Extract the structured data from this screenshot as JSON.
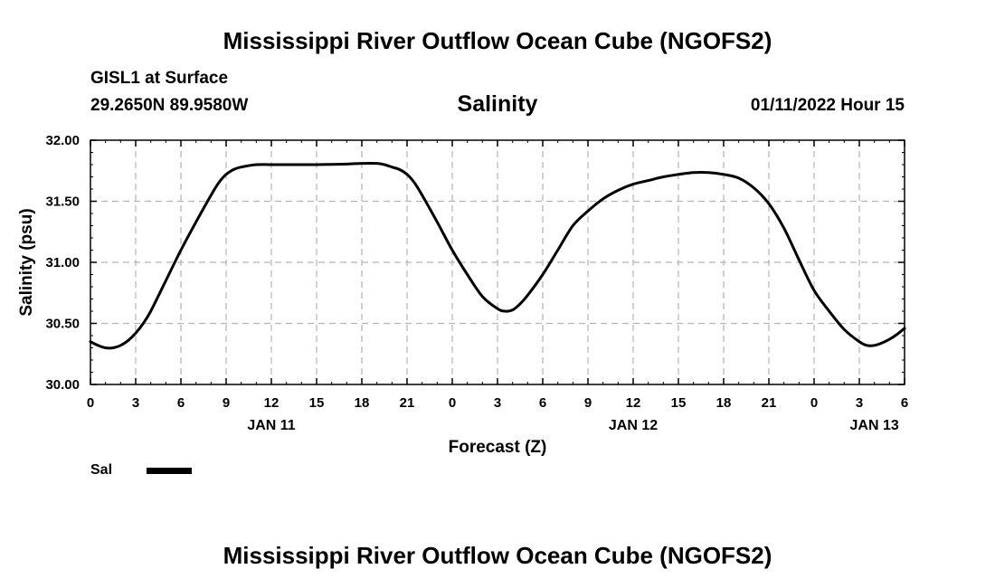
{
  "header": {
    "title": "Mississippi River Outflow Ocean Cube (NGOFS2)",
    "station": "GISL1 at Surface",
    "coordinates": "29.2650N  89.9580W",
    "variable": "Salinity",
    "datetime": "01/11/2022 Hour 15"
  },
  "footer": {
    "title": "Mississippi River Outflow Ocean Cube (NGOFS2)"
  },
  "legend": {
    "label": "Sal",
    "color": "#000000"
  },
  "chart_data": {
    "type": "line",
    "title": "Salinity",
    "xlabel": "Forecast (Z)",
    "ylabel": "Salinity (psu)",
    "xlim": [
      0,
      54
    ],
    "ylim": [
      30.0,
      32.0
    ],
    "grid": true,
    "grid_color": "#b4b4b4",
    "line_color": "#000000",
    "y_ticks": [
      {
        "value": 30.0,
        "label": "30.00"
      },
      {
        "value": 30.5,
        "label": "30.50"
      },
      {
        "value": 31.0,
        "label": "31.00"
      },
      {
        "value": 31.5,
        "label": "31.50"
      },
      {
        "value": 32.0,
        "label": "32.00"
      }
    ],
    "x_ticks": [
      {
        "hour": 0,
        "label": "0"
      },
      {
        "hour": 3,
        "label": "3"
      },
      {
        "hour": 6,
        "label": "6"
      },
      {
        "hour": 9,
        "label": "9"
      },
      {
        "hour": 12,
        "label": "12"
      },
      {
        "hour": 15,
        "label": "15"
      },
      {
        "hour": 18,
        "label": "18"
      },
      {
        "hour": 21,
        "label": "21"
      },
      {
        "hour": 24,
        "label": "0"
      },
      {
        "hour": 27,
        "label": "3"
      },
      {
        "hour": 30,
        "label": "6"
      },
      {
        "hour": 33,
        "label": "9"
      },
      {
        "hour": 36,
        "label": "12"
      },
      {
        "hour": 39,
        "label": "15"
      },
      {
        "hour": 42,
        "label": "18"
      },
      {
        "hour": 45,
        "label": "21"
      },
      {
        "hour": 48,
        "label": "0"
      },
      {
        "hour": 51,
        "label": "3"
      },
      {
        "hour": 54,
        "label": "6"
      }
    ],
    "day_labels": [
      {
        "hour": 12,
        "label": "JAN 11"
      },
      {
        "hour": 36,
        "label": "JAN 12"
      },
      {
        "hour": 52,
        "label": "JAN 13"
      }
    ],
    "series": [
      {
        "name": "Sal",
        "x": [
          0,
          0.5,
          1,
          1.5,
          2,
          2.5,
          3,
          3.5,
          4,
          5,
          6,
          7,
          8,
          8.5,
          9,
          9.5,
          10,
          11,
          12,
          13,
          15,
          17,
          18,
          19,
          19.5,
          20,
          20.5,
          21,
          21.5,
          22,
          23,
          24,
          25,
          26,
          27,
          27.5,
          28,
          28.5,
          29,
          30,
          31,
          32,
          33,
          34,
          35,
          36,
          37,
          38,
          39,
          40,
          41,
          42,
          43,
          44,
          45,
          46,
          47,
          48,
          49,
          50,
          51,
          51.5,
          52,
          52.5,
          53,
          53.5,
          54
        ],
        "y": [
          30.35,
          30.32,
          30.3,
          30.3,
          30.32,
          30.36,
          30.42,
          30.5,
          30.6,
          30.85,
          31.1,
          31.33,
          31.55,
          31.65,
          31.72,
          31.76,
          31.78,
          31.8,
          31.8,
          31.8,
          31.8,
          31.805,
          31.81,
          31.81,
          31.8,
          31.78,
          31.76,
          31.72,
          31.65,
          31.55,
          31.33,
          31.1,
          30.9,
          30.72,
          30.62,
          30.6,
          30.61,
          30.66,
          30.73,
          30.9,
          31.1,
          31.3,
          31.42,
          31.52,
          31.59,
          31.64,
          31.67,
          31.7,
          31.72,
          31.735,
          31.735,
          31.72,
          31.69,
          31.61,
          31.48,
          31.28,
          31.02,
          30.77,
          30.6,
          30.45,
          30.35,
          30.32,
          30.32,
          30.34,
          30.37,
          30.41,
          30.46
        ]
      }
    ]
  }
}
